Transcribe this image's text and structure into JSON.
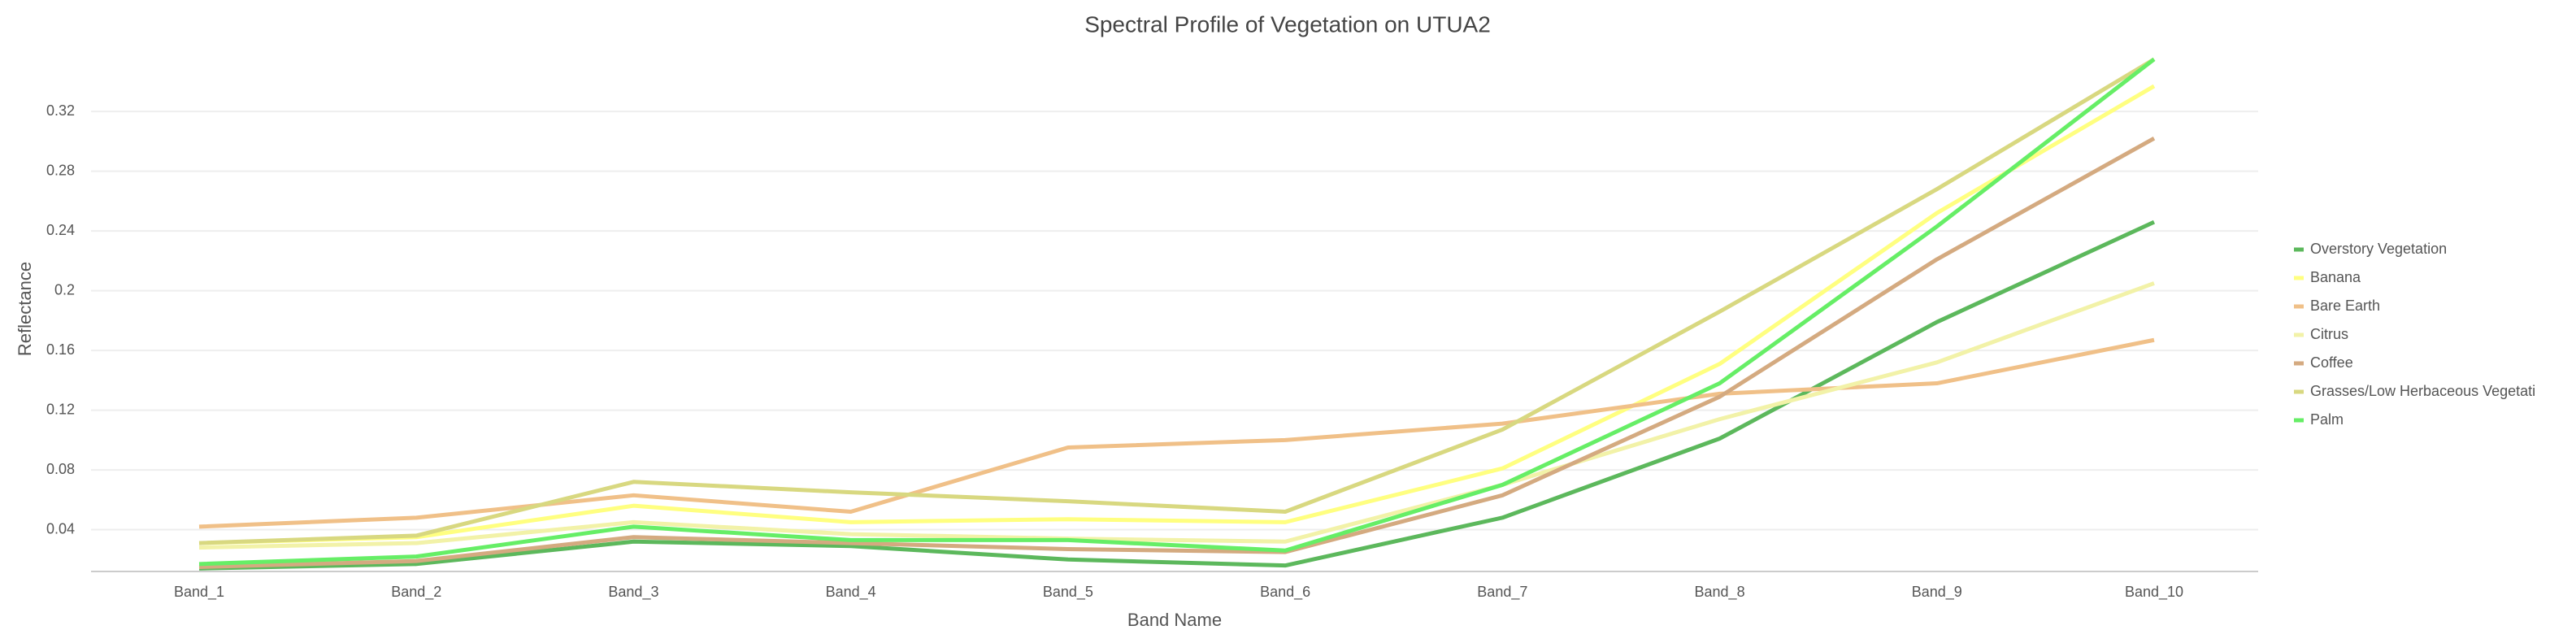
{
  "chart_data": {
    "type": "line",
    "title": "Spectral Profile of Vegetation on UTUA2",
    "x_label": "Band Name",
    "y_label": "Reflectance",
    "categories": [
      "Band_1",
      "Band_2",
      "Band_3",
      "Band_4",
      "Band_5",
      "Band_6",
      "Band_7",
      "Band_8",
      "Band_9",
      "Band_10"
    ],
    "series": [
      {
        "name": "Overstory Vegetation",
        "color": "#5cb85c",
        "values": [
          0.014,
          0.017,
          0.032,
          0.029,
          0.02,
          0.016,
          0.048,
          0.101,
          0.179,
          0.246
        ]
      },
      {
        "name": "Banana",
        "color": "#ffff80",
        "values": [
          0.031,
          0.035,
          0.056,
          0.045,
          0.047,
          0.045,
          0.081,
          0.151,
          0.252,
          0.337
        ]
      },
      {
        "name": "Bare Earth",
        "color": "#f0c088",
        "values": [
          0.042,
          0.048,
          0.063,
          0.052,
          0.095,
          0.1,
          0.111,
          0.131,
          0.138,
          0.167
        ]
      },
      {
        "name": "Citrus",
        "color": "#f2f2a8",
        "values": [
          0.028,
          0.031,
          0.045,
          0.037,
          0.034,
          0.032,
          0.07,
          0.114,
          0.152,
          0.205
        ]
      },
      {
        "name": "Coffee",
        "color": "#d4aa80",
        "values": [
          0.015,
          0.019,
          0.035,
          0.031,
          0.027,
          0.025,
          0.063,
          0.129,
          0.221,
          0.302
        ]
      },
      {
        "name": "Grasses/Low Herbaceous Vegetati",
        "color": "#d8d880",
        "values": [
          0.031,
          0.036,
          0.072,
          0.065,
          0.059,
          0.052,
          0.107,
          0.186,
          0.268,
          0.355
        ]
      },
      {
        "name": "Palm",
        "color": "#66ee66",
        "values": [
          0.017,
          0.022,
          0.042,
          0.033,
          0.033,
          0.026,
          0.07,
          0.138,
          0.243,
          0.355
        ]
      }
    ],
    "ylim": [
      0.012,
      0.362
    ],
    "yticks": [
      0.04,
      0.08,
      0.12,
      0.16,
      0.2,
      0.24,
      0.28,
      0.32
    ],
    "grid": true,
    "legend": "right"
  }
}
